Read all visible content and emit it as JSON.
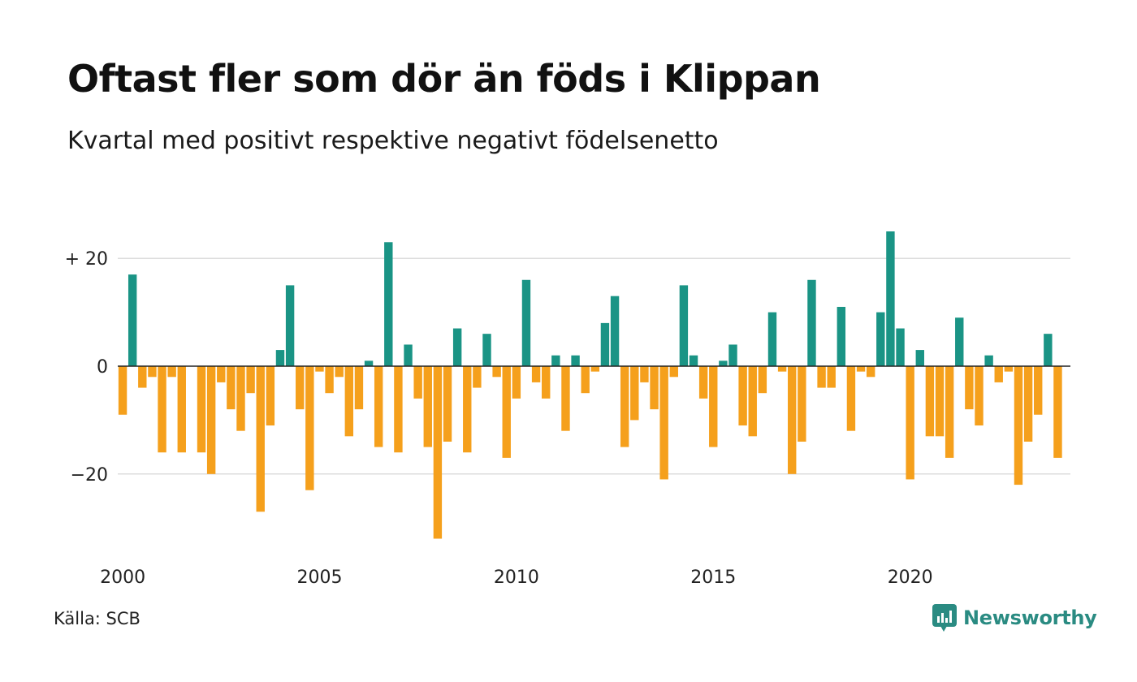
{
  "title": "Oftast fler som dör än föds i Klippan",
  "subtitle": "Kvartal med positivt respektive negativt födelsenetto",
  "source": "Källa: SCB",
  "brand": "Newsworthy",
  "colors": {
    "positive": "#1a9485",
    "negative": "#f5a01c",
    "grid": "#dddddd",
    "axis": "#222222",
    "brand": "#2a8b82"
  },
  "chart_data": {
    "type": "bar",
    "title": "Oftast fler som dör än föds i Klippan",
    "subtitle": "Kvartal med positivt respektive negativt födelsenetto",
    "x_start_year": 2000,
    "periods_per_year": 4,
    "ylim": [
      -33,
      27
    ],
    "yticks": [
      {
        "value": 20,
        "label": "+ 20"
      },
      {
        "value": 0,
        "label": "0"
      },
      {
        "value": -20,
        "label": "−20"
      }
    ],
    "xticks": [
      "2000",
      "2005",
      "2010",
      "2015",
      "2020"
    ],
    "values": [
      -9,
      17,
      -4,
      -2,
      -16,
      -2,
      -16,
      0,
      -16,
      -20,
      -3,
      -8,
      -12,
      -5,
      -27,
      -11,
      3,
      15,
      -8,
      -23,
      -1,
      -5,
      -2,
      -13,
      -8,
      1,
      -15,
      23,
      -16,
      4,
      -6,
      -15,
      -32,
      -14,
      7,
      -16,
      -4,
      6,
      -2,
      -17,
      -6,
      16,
      -3,
      -6,
      2,
      -12,
      2,
      -5,
      -1,
      8,
      13,
      -15,
      -10,
      -3,
      -8,
      -21,
      -2,
      15,
      2,
      -6,
      -15,
      1,
      4,
      -11,
      -13,
      -5,
      10,
      -1,
      -20,
      -14,
      16,
      -4,
      -4,
      11,
      -12,
      -1,
      -2,
      10,
      25,
      7,
      -21,
      3,
      -13,
      -13,
      -17,
      9,
      -8,
      -11,
      2,
      -3,
      -1,
      -22,
      -14,
      -9,
      6,
      -17
    ],
    "grid": true,
    "legend": "none"
  }
}
